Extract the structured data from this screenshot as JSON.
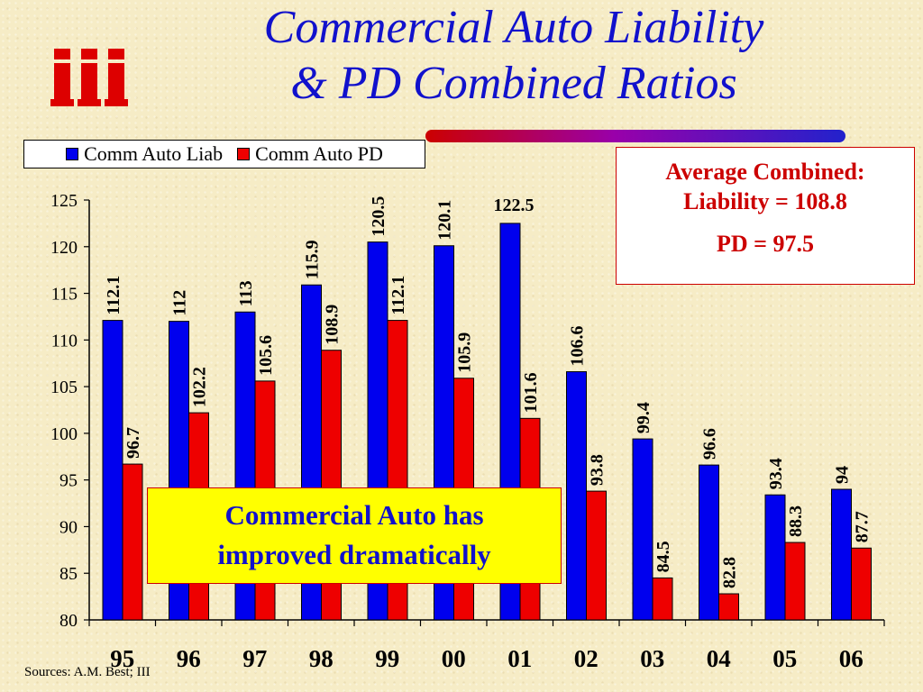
{
  "title": {
    "line1": "Commercial Auto Liability",
    "line2": "& PD Combined Ratios"
  },
  "logo": {
    "text": "iii",
    "icon": "iii-logo-icon",
    "color": "#dd0000"
  },
  "colors": {
    "title": "#1111cc",
    "liab": "#0000ee",
    "pd": "#ee0000",
    "callout_bg": "#ffff00",
    "box_text": "#cc0000"
  },
  "average_box": {
    "line1": "Average Combined:",
    "line2": "Liability = 108.8",
    "line3": "PD = 97.5"
  },
  "callout": {
    "line1": "Commercial Auto has",
    "line2": "improved dramatically"
  },
  "sources": "Sources: A.M. Best; III",
  "chart_data": {
    "type": "bar",
    "categories": [
      "95",
      "96",
      "97",
      "98",
      "99",
      "00",
      "01",
      "02",
      "03",
      "04",
      "05",
      "06"
    ],
    "series": [
      {
        "name": "Comm Auto Liab",
        "color": "#0000ee",
        "values": [
          112.1,
          112,
          113,
          115.9,
          120.5,
          120.1,
          122.5,
          106.6,
          99.4,
          96.6,
          93.4,
          94
        ]
      },
      {
        "name": "Comm Auto PD",
        "color": "#ee0000",
        "values": [
          96.7,
          102.2,
          105.6,
          108.9,
          112.1,
          105.9,
          101.6,
          93.8,
          84.5,
          82.8,
          88.3,
          87.7
        ]
      }
    ],
    "data_labels": {
      "Comm Auto Liab": [
        "112.1",
        "112",
        "113",
        "115.9",
        "120.5",
        "120.1",
        "122.5",
        "106.6",
        "99.4",
        "96.6",
        "93.4",
        "94"
      ],
      "Comm Auto PD": [
        "96.7",
        "102.2",
        "105.6",
        "108.9",
        "112.1",
        "105.9",
        "101.6",
        "93.8",
        "84.5",
        "82.8",
        "88.3",
        "87.7"
      ]
    },
    "ylim": [
      80,
      125
    ],
    "yticks": [
      "80",
      "85",
      "90",
      "95",
      "100",
      "105",
      "110",
      "115",
      "120",
      "125"
    ],
    "xlabel": "",
    "ylabel": "",
    "grid": false,
    "legend_position": "top-left"
  }
}
